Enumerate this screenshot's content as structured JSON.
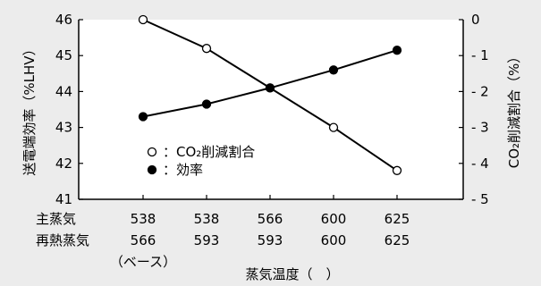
{
  "chart_data": {
    "type": "line",
    "xlabel": "蒸気温度（　）",
    "ylabel_left": "送電端効率（%LHV）",
    "ylabel_right": "CO₂削減割合（%）",
    "categories": [
      {
        "main_steam": "538",
        "reheat_steam": "566",
        "note": "（ベース）"
      },
      {
        "main_steam": "538",
        "reheat_steam": "593",
        "note": ""
      },
      {
        "main_steam": "566",
        "reheat_steam": "593",
        "note": ""
      },
      {
        "main_steam": "600",
        "reheat_steam": "600",
        "note": ""
      },
      {
        "main_steam": "625",
        "reheat_steam": "625",
        "note": ""
      }
    ],
    "row_labels": [
      "主蒸気",
      "再熱蒸気"
    ],
    "left_axis": {
      "min": 41,
      "max": 46,
      "ticks": [
        "46",
        "45",
        "44",
        "43",
        "42",
        "41"
      ]
    },
    "right_axis": {
      "min": -5,
      "max": 0,
      "ticks": [
        "0",
        "- 1",
        "- 2",
        "- 3",
        "- 4",
        "- 5"
      ]
    },
    "series": [
      {
        "name": "：CO₂削減割合",
        "marker": "open-circle",
        "axis": "right",
        "values": [
          0,
          -0.8,
          -1.9,
          -3.0,
          -4.2
        ]
      },
      {
        "name": "：効率",
        "marker": "filled-circle",
        "axis": "left",
        "values": [
          43.3,
          43.65,
          44.1,
          44.6,
          45.15
        ]
      }
    ]
  },
  "colors": {
    "background": "#ececec",
    "plot_area": "#ffffff",
    "ink": "#000000"
  }
}
